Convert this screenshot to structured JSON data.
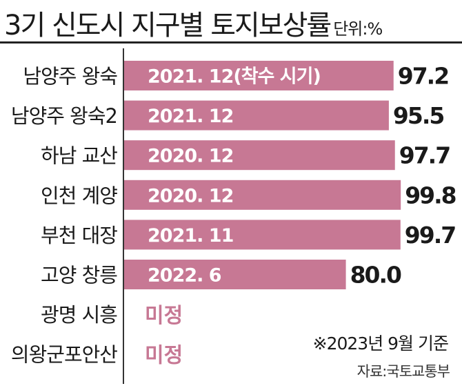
{
  "title": "3기 신도시 지구별 토지보상률",
  "unit": "단위:%",
  "note": "※2023년 9월 기준",
  "source": "자료:국토교통부",
  "colors": {
    "bar": "#c77894",
    "bar_text": "#ffffff",
    "undecided": "#c77894"
  },
  "chart_data": {
    "type": "bar",
    "orientation": "horizontal",
    "categories": [
      "남양주 왕숙",
      "남양주 왕숙2",
      "하남 교산",
      "인천 계양",
      "부천 대장",
      "고양 창릉",
      "광명 시흥",
      "의왕군포안산"
    ],
    "values": [
      97.2,
      95.5,
      97.7,
      99.8,
      99.7,
      80.0,
      null,
      null
    ],
    "value_labels": [
      "97.2",
      "95.5",
      "97.7",
      "99.8",
      "99.7",
      "80.0",
      "",
      ""
    ],
    "bar_labels": [
      "2021. 12(착수 시기)",
      "2021. 12",
      "2020. 12",
      "2020. 12",
      "2021. 11",
      "2022. 6",
      "",
      ""
    ],
    "undecided_label": "미정",
    "xlim": [
      0,
      100
    ]
  }
}
